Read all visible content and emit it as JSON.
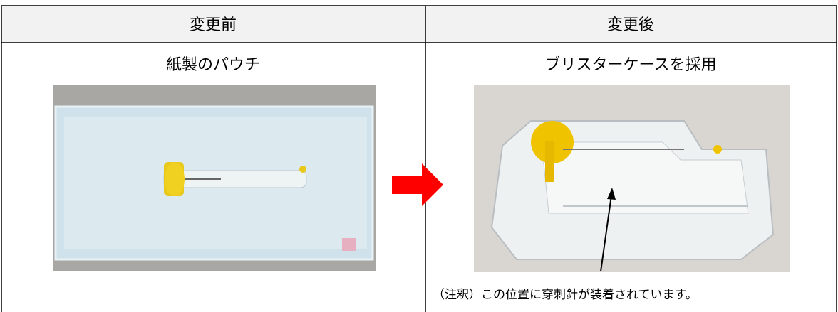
{
  "table": {
    "header": [
      "変更前",
      "変更後"
    ],
    "rows": [
      [
        "紙製のパウチ",
        "ブリスターケースを採用"
      ]
    ]
  },
  "note": "（注釈）この位置に穿刺針が装着されています。"
}
